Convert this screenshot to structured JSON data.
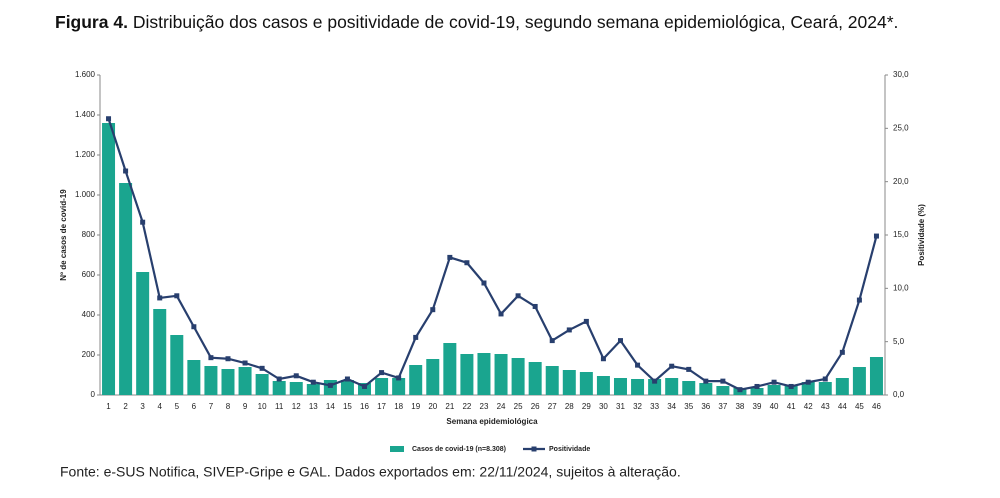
{
  "chart_data": {
    "type": "combo",
    "title_label": "Figura 4.",
    "title": "Distribuição dos casos e positividade de covid-19, segundo semana epidemiológica, Ceará, 2024*.",
    "x_label": "Semana epidemiológica",
    "y_label": "Nº de casos de covid-19",
    "y2_label": "Positividade (%)",
    "source": "Fonte: e-SUS Notifica, SIVEP-Gripe e GAL. Dados exportados em: 22/11/2024, sujeitos à alteração.",
    "categories": [
      1,
      2,
      3,
      4,
      5,
      6,
      7,
      8,
      9,
      10,
      11,
      12,
      13,
      14,
      15,
      16,
      17,
      18,
      19,
      20,
      21,
      22,
      23,
      24,
      25,
      26,
      27,
      28,
      29,
      30,
      31,
      32,
      33,
      34,
      35,
      36,
      37,
      38,
      39,
      40,
      41,
      42,
      43,
      44,
      45,
      46
    ],
    "series": [
      {
        "name": "Casos de covid-19 (n=8.308)",
        "type": "bar",
        "color": "#1aa58f",
        "values": [
          1360,
          1060,
          615,
          430,
          300,
          175,
          145,
          130,
          140,
          105,
          70,
          65,
          55,
          75,
          75,
          60,
          85,
          85,
          150,
          180,
          260,
          205,
          210,
          205,
          185,
          165,
          145,
          125,
          115,
          95,
          85,
          80,
          80,
          85,
          70,
          60,
          45,
          35,
          35,
          50,
          45,
          65,
          65,
          85,
          140,
          190
        ]
      },
      {
        "name": "Positividade",
        "type": "line",
        "axis": "y2",
        "color": "#283f6e",
        "values": [
          25.9,
          21.0,
          16.2,
          9.1,
          9.3,
          6.4,
          3.5,
          3.4,
          3.0,
          2.5,
          1.5,
          1.8,
          1.2,
          0.9,
          1.5,
          0.8,
          2.1,
          1.6,
          5.4,
          8.0,
          12.9,
          12.4,
          10.5,
          7.6,
          9.3,
          8.3,
          5.1,
          6.1,
          6.9,
          3.4,
          5.1,
          2.8,
          1.3,
          2.7,
          2.4,
          1.3,
          1.3,
          0.5,
          0.8,
          1.2,
          0.8,
          1.2,
          1.5,
          4.0,
          8.9,
          14.9
        ]
      }
    ],
    "ylim": [
      0,
      1600
    ],
    "yticks": [
      0,
      200,
      400,
      600,
      800,
      {
        "value": 1000,
        "label": "1.000"
      },
      {
        "value": 1200,
        "label": "1.200"
      },
      {
        "value": 1400,
        "label": "1.400"
      },
      {
        "value": 1600,
        "label": "1.600"
      }
    ],
    "y2lim": [
      0,
      30
    ],
    "y2ticks": [
      {
        "value": 0,
        "label": "0,0"
      },
      {
        "value": 5,
        "label": "5,0"
      },
      {
        "value": 10,
        "label": "10,0"
      },
      {
        "value": 15,
        "label": "15,0"
      },
      {
        "value": 20,
        "label": "20,0"
      },
      {
        "value": 25,
        "label": "25,0"
      },
      {
        "value": 30,
        "label": "30,0"
      }
    ],
    "grid": false
  }
}
